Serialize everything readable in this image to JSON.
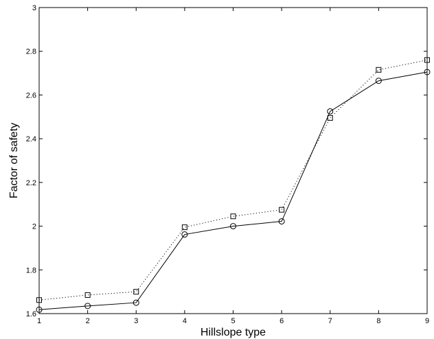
{
  "chart_data": {
    "type": "line",
    "title": "",
    "xlabel": "Hillslope type",
    "ylabel": "Factor of safety",
    "xlim": [
      1,
      9
    ],
    "ylim": [
      1.6,
      3
    ],
    "x_ticks": [
      "1",
      "2",
      "3",
      "4",
      "5",
      "6",
      "7",
      "8",
      "9"
    ],
    "y_ticks": [
      "1.6",
      "1.8",
      "2",
      "2.2",
      "2.4",
      "2.6",
      "2.8",
      "3"
    ],
    "x": [
      1,
      2,
      3,
      4,
      5,
      6,
      7,
      8,
      9
    ],
    "grid": false,
    "legend": "none",
    "series": [
      {
        "line_style": "dotted",
        "marker": "square",
        "color": "#000000",
        "values": [
          1.662,
          1.685,
          1.7,
          1.995,
          2.045,
          2.075,
          2.495,
          2.715,
          2.76
        ]
      },
      {
        "line_style": "solid",
        "marker": "circle",
        "color": "#000000",
        "values": [
          1.618,
          1.635,
          1.65,
          1.962,
          2.0,
          2.022,
          2.525,
          2.665,
          2.705
        ]
      }
    ]
  }
}
